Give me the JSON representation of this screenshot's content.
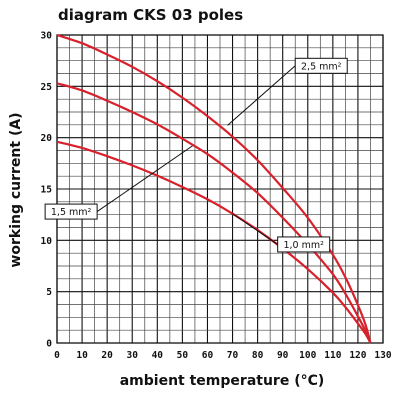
{
  "chart_data": {
    "type": "line",
    "title": "diagram CKS 03 poles",
    "xlabel": "ambient temperature (°C)",
    "ylabel": "working current (A)",
    "xlim": [
      0,
      130
    ],
    "ylim": [
      0,
      30
    ],
    "x_ticks": [
      "0",
      "10",
      "20",
      "30",
      "40",
      "50",
      "60",
      "70",
      "80",
      "90",
      "100",
      "110",
      "120",
      "130"
    ],
    "y_ticks": [
      "0",
      "5",
      "10",
      "15",
      "20",
      "25",
      "30"
    ],
    "grid": true,
    "colors": {
      "curve": "#d8212b",
      "grid": "#444444",
      "text": "#111111"
    },
    "series": [
      {
        "name": "2,5 mm²",
        "points": [
          [
            0,
            30
          ],
          [
            10,
            29.2
          ],
          [
            20,
            28.1
          ],
          [
            30,
            26.9
          ],
          [
            40,
            25.5
          ],
          [
            50,
            23.9
          ],
          [
            60,
            22.1
          ],
          [
            70,
            20.1
          ],
          [
            80,
            17.8
          ],
          [
            90,
            15.1
          ],
          [
            100,
            12.2
          ],
          [
            110,
            8.6
          ],
          [
            115,
            6.4
          ],
          [
            120,
            3.7
          ],
          [
            123,
            1.8
          ],
          [
            125,
            0
          ]
        ]
      },
      {
        "name": "1,5 mm²",
        "points": [
          [
            0,
            25.3
          ],
          [
            10,
            24.6
          ],
          [
            20,
            23.6
          ],
          [
            30,
            22.5
          ],
          [
            40,
            21.3
          ],
          [
            50,
            19.9
          ],
          [
            60,
            18.4
          ],
          [
            70,
            16.6
          ],
          [
            80,
            14.6
          ],
          [
            90,
            12.2
          ],
          [
            100,
            9.6
          ],
          [
            110,
            6.7
          ],
          [
            115,
            4.8
          ],
          [
            120,
            2.6
          ],
          [
            123,
            1.2
          ],
          [
            125,
            0
          ]
        ]
      },
      {
        "name": "1,0 mm²",
        "points": [
          [
            0,
            19.6
          ],
          [
            10,
            19
          ],
          [
            20,
            18.2
          ],
          [
            30,
            17.3
          ],
          [
            40,
            16.3
          ],
          [
            50,
            15.2
          ],
          [
            60,
            14
          ],
          [
            70,
            12.6
          ],
          [
            80,
            11
          ],
          [
            90,
            9.2
          ],
          [
            100,
            7.2
          ],
          [
            110,
            4.9
          ],
          [
            115,
            3.5
          ],
          [
            120,
            1.9
          ],
          [
            123,
            0.9
          ],
          [
            125,
            0
          ]
        ]
      }
    ],
    "callouts": [
      {
        "label": "2,5 mm²",
        "box_x": 95,
        "box_y": 27,
        "anchor_x": 68,
        "anchor_y": 21.2,
        "align": "left"
      },
      {
        "label": "1,5 mm²",
        "box_x": 16,
        "box_y": 12.8,
        "anchor_x": 54,
        "anchor_y": 19.2,
        "align": "right"
      },
      {
        "label": "1,0 mm²",
        "box_x": 88,
        "box_y": 9.6,
        "anchor_x": 70,
        "anchor_y": 12.6,
        "align": "left"
      }
    ]
  }
}
